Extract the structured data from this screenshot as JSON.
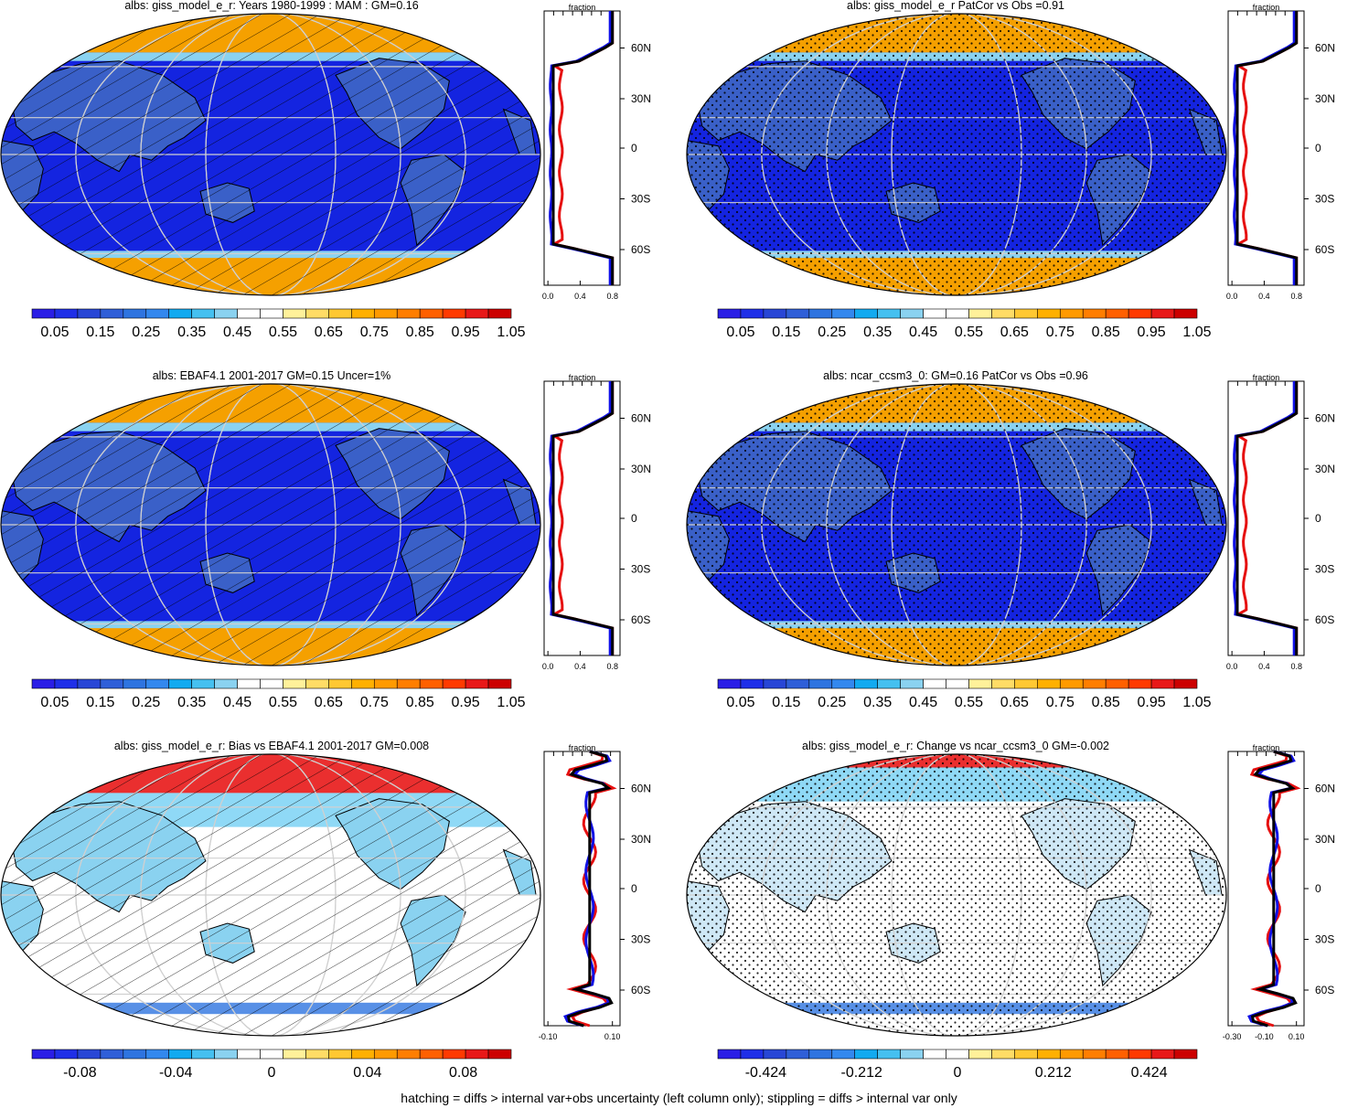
{
  "footer": "hatching = diffs > internal var+obs uncertainty (left column only); stippling = diffs > internal var only",
  "profile_label": "fraction",
  "lat_ticks": [
    "60N",
    "30N",
    "0",
    "30S",
    "60S"
  ],
  "colors": {
    "abs_scale": [
      "#2a1ee6",
      "#1f2fe8",
      "#2846d6",
      "#2f5fd8",
      "#2e74e0",
      "#3388ee",
      "#12aaf0",
      "#45c0f0",
      "#8ad2f0",
      "#ffffff",
      "#ffffff",
      "#fff19a",
      "#ffdc66",
      "#ffc832",
      "#ffb000",
      "#ff9a00",
      "#ff7e00",
      "#ff6000",
      "#ff3a00",
      "#e81818",
      "#cc0000"
    ],
    "diff_scale": [
      "#2a1ee6",
      "#1f2fe8",
      "#2846d6",
      "#2f5fd8",
      "#2e74e0",
      "#3388ee",
      "#12aaf0",
      "#45c0f0",
      "#8ad2f0",
      "#ffffff",
      "#ffffff",
      "#fff19a",
      "#ffdc66",
      "#ffc832",
      "#ffb000",
      "#ff9a00",
      "#ff7e00",
      "#ff6000",
      "#ff3a00",
      "#e81818",
      "#cc0000"
    ],
    "ocean": "#1424e0",
    "land_tropic": "#3a60c8",
    "ice": "#f5a000",
    "model_line": "#000000",
    "obs_line": "#e61010",
    "other_line": "#1010e6"
  },
  "panels": [
    {
      "id": "p1",
      "title": "albs: giss_model_e_r: Years 1980-1999 : MAM : GM=0.16",
      "kind": "abs",
      "overlay": "hatch",
      "colorbar_labels": [
        "0.05",
        "0.15",
        "0.25",
        "0.35",
        "0.45",
        "0.55",
        "0.65",
        "0.75",
        "0.85",
        "0.95",
        "1.05"
      ],
      "profile_ticks": [
        "0.0",
        "0.4",
        "0.8"
      ]
    },
    {
      "id": "p2",
      "title": "albs: giss_model_e_r PatCor vs Obs =0.91",
      "kind": "abs",
      "overlay": "stipple",
      "colorbar_labels": [
        "0.05",
        "0.15",
        "0.25",
        "0.35",
        "0.45",
        "0.55",
        "0.65",
        "0.75",
        "0.85",
        "0.95",
        "1.05"
      ],
      "profile_ticks": [
        "0.0",
        "0.4",
        "0.8"
      ]
    },
    {
      "id": "p3",
      "title": "albs: EBAF4.1 2001-2017 GM=0.15 Uncer=1%",
      "kind": "abs",
      "overlay": "hatch",
      "colorbar_labels": [
        "0.05",
        "0.15",
        "0.25",
        "0.35",
        "0.45",
        "0.55",
        "0.65",
        "0.75",
        "0.85",
        "0.95",
        "1.05"
      ],
      "profile_ticks": [
        "0.0",
        "0.4",
        "0.8"
      ]
    },
    {
      "id": "p4",
      "title": "albs: ncar_ccsm3_0: GM=0.16 PatCor vs Obs =0.96",
      "kind": "abs",
      "overlay": "stipple",
      "colorbar_labels": [
        "0.05",
        "0.15",
        "0.25",
        "0.35",
        "0.45",
        "0.55",
        "0.65",
        "0.75",
        "0.85",
        "0.95",
        "1.05"
      ],
      "profile_ticks": [
        "0.0",
        "0.4",
        "0.8"
      ]
    },
    {
      "id": "p5",
      "title": "albs: giss_model_e_r: Bias vs EBAF4.1 2001-2017 GM=0.008",
      "kind": "diff",
      "overlay": "hatch",
      "colorbar_labels": [
        "-0.08",
        "-0.04",
        "0",
        "0.04",
        "0.08"
      ],
      "profile_ticks": [
        "-0.10",
        "0.10"
      ]
    },
    {
      "id": "p6",
      "title": "albs: giss_model_e_r: Change vs ncar_ccsm3_0 GM=-0.002",
      "kind": "diff",
      "overlay": "stipple",
      "colorbar_labels": [
        "-0.424",
        "-0.212",
        "0",
        "0.212",
        "0.424"
      ],
      "profile_ticks": [
        "-0.30",
        "-0.10",
        "0.10"
      ]
    }
  ]
}
